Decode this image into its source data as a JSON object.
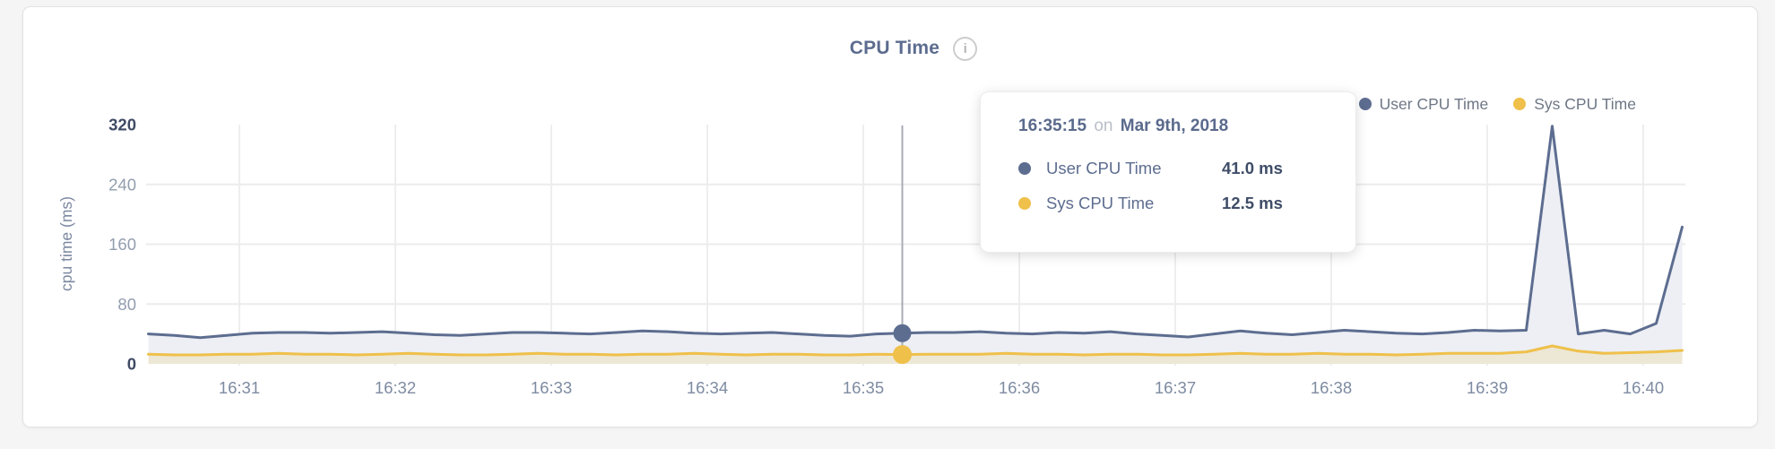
{
  "header": {
    "title": "CPU Time",
    "info_glyph": "i"
  },
  "legend": {
    "items": [
      {
        "label": "User CPU Time",
        "color": "#5d6d90"
      },
      {
        "label": "Sys CPU Time",
        "color": "#efc04a"
      }
    ]
  },
  "tooltip": {
    "time": "16:35:15",
    "connector": "on",
    "date": "Mar 9th, 2018",
    "rows": [
      {
        "label": "User CPU Time",
        "value": "41.0 ms",
        "color": "#5d6d90"
      },
      {
        "label": "Sys CPU Time",
        "value": "12.5 ms",
        "color": "#efc04a"
      }
    ]
  },
  "chart_data": {
    "type": "area",
    "title": "CPU Time",
    "xlabel": "",
    "ylabel": "cpu time (ms)",
    "ylim": [
      0,
      320
    ],
    "yticks": [
      0,
      80,
      160,
      240,
      320
    ],
    "xticks": [
      "16:31",
      "16:32",
      "16:33",
      "16:34",
      "16:35",
      "16:36",
      "16:37",
      "16:38",
      "16:39",
      "16:40"
    ],
    "grid": true,
    "legend_position": "top-right",
    "x": [
      "16:30:25",
      "16:30:35",
      "16:30:45",
      "16:30:55",
      "16:31:05",
      "16:31:15",
      "16:31:25",
      "16:31:35",
      "16:31:45",
      "16:31:55",
      "16:32:05",
      "16:32:15",
      "16:32:25",
      "16:32:35",
      "16:32:45",
      "16:32:55",
      "16:33:05",
      "16:33:15",
      "16:33:25",
      "16:33:35",
      "16:33:45",
      "16:33:55",
      "16:34:05",
      "16:34:15",
      "16:34:25",
      "16:34:35",
      "16:34:45",
      "16:34:55",
      "16:35:05",
      "16:35:15",
      "16:35:25",
      "16:35:35",
      "16:35:45",
      "16:35:55",
      "16:36:05",
      "16:36:15",
      "16:36:25",
      "16:36:35",
      "16:36:45",
      "16:36:55",
      "16:37:05",
      "16:37:15",
      "16:37:25",
      "16:37:35",
      "16:37:45",
      "16:37:55",
      "16:38:05",
      "16:38:15",
      "16:38:25",
      "16:38:35",
      "16:38:45",
      "16:38:55",
      "16:39:05",
      "16:39:15",
      "16:39:25",
      "16:39:35",
      "16:39:45",
      "16:39:55",
      "16:40:05",
      "16:40:15"
    ],
    "series": [
      {
        "name": "User CPU Time",
        "color": "#5d6d90",
        "fill": "#edeff4",
        "values": [
          40,
          38,
          35,
          38,
          41,
          42,
          42,
          41,
          42,
          43,
          41,
          39,
          38,
          40,
          42,
          42,
          41,
          40,
          42,
          44,
          43,
          41,
          40,
          41,
          42,
          40,
          38,
          37,
          40,
          41,
          42,
          42,
          43,
          41,
          40,
          42,
          41,
          43,
          40,
          38,
          36,
          40,
          44,
          41,
          39,
          42,
          45,
          43,
          41,
          40,
          42,
          45,
          44,
          45,
          318,
          40,
          45,
          40,
          54,
          183
        ]
      },
      {
        "name": "Sys CPU Time",
        "color": "#efc04a",
        "fill": "rgba(239,192,74,0.18)",
        "values": [
          13,
          12,
          12,
          13,
          13,
          14,
          13,
          13,
          12,
          13,
          14,
          13,
          12,
          12,
          13,
          14,
          13,
          13,
          12,
          13,
          13,
          14,
          13,
          12,
          13,
          13,
          12,
          12,
          13,
          12.5,
          13,
          13,
          13,
          14,
          13,
          13,
          12,
          13,
          13,
          12,
          12,
          13,
          14,
          13,
          13,
          14,
          13,
          13,
          12,
          13,
          14,
          14,
          14,
          16,
          24,
          17,
          14,
          15,
          16,
          18
        ]
      }
    ],
    "highlight": {
      "index": 29,
      "time": "16:35:15",
      "date": "Mar 9th, 2018",
      "user_ms": 41.0,
      "sys_ms": 12.5
    }
  }
}
